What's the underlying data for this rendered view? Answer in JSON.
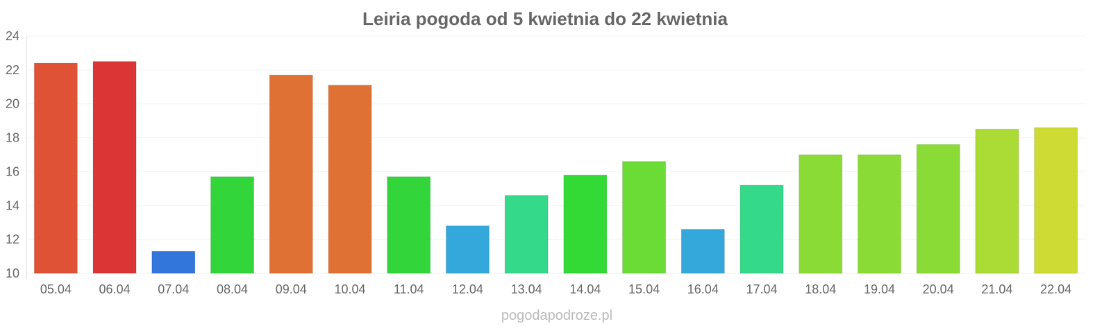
{
  "chart_data": {
    "type": "bar",
    "title": "Leiria pogoda od 5 kwietnia do 22 kwietnia",
    "xlabel": "",
    "ylabel": "",
    "ylim": [
      10,
      24
    ],
    "yticks": [
      10,
      12,
      14,
      16,
      18,
      20,
      22,
      24
    ],
    "grid": true,
    "categories": [
      "05.04",
      "06.04",
      "07.04",
      "08.04",
      "09.04",
      "10.04",
      "11.04",
      "12.04",
      "13.04",
      "14.04",
      "15.04",
      "16.04",
      "17.04",
      "18.04",
      "19.04",
      "20.04",
      "21.04",
      "22.04"
    ],
    "values": [
      22.4,
      22.5,
      11.3,
      15.7,
      21.7,
      21.1,
      15.7,
      12.8,
      14.6,
      15.8,
      16.6,
      12.6,
      15.2,
      17.0,
      17.0,
      17.6,
      18.5,
      18.6
    ],
    "colors": [
      "#e05236",
      "#dc3535",
      "#3275db",
      "#33d63a",
      "#df7135",
      "#df7135",
      "#33d63a",
      "#35a8db",
      "#35d98a",
      "#33d935",
      "#6bdb35",
      "#35a8db",
      "#35d98a",
      "#8adb35",
      "#8adb35",
      "#8adb35",
      "#abdb35",
      "#cedb35"
    ]
  },
  "watermark": "pogodapodroze.pl"
}
